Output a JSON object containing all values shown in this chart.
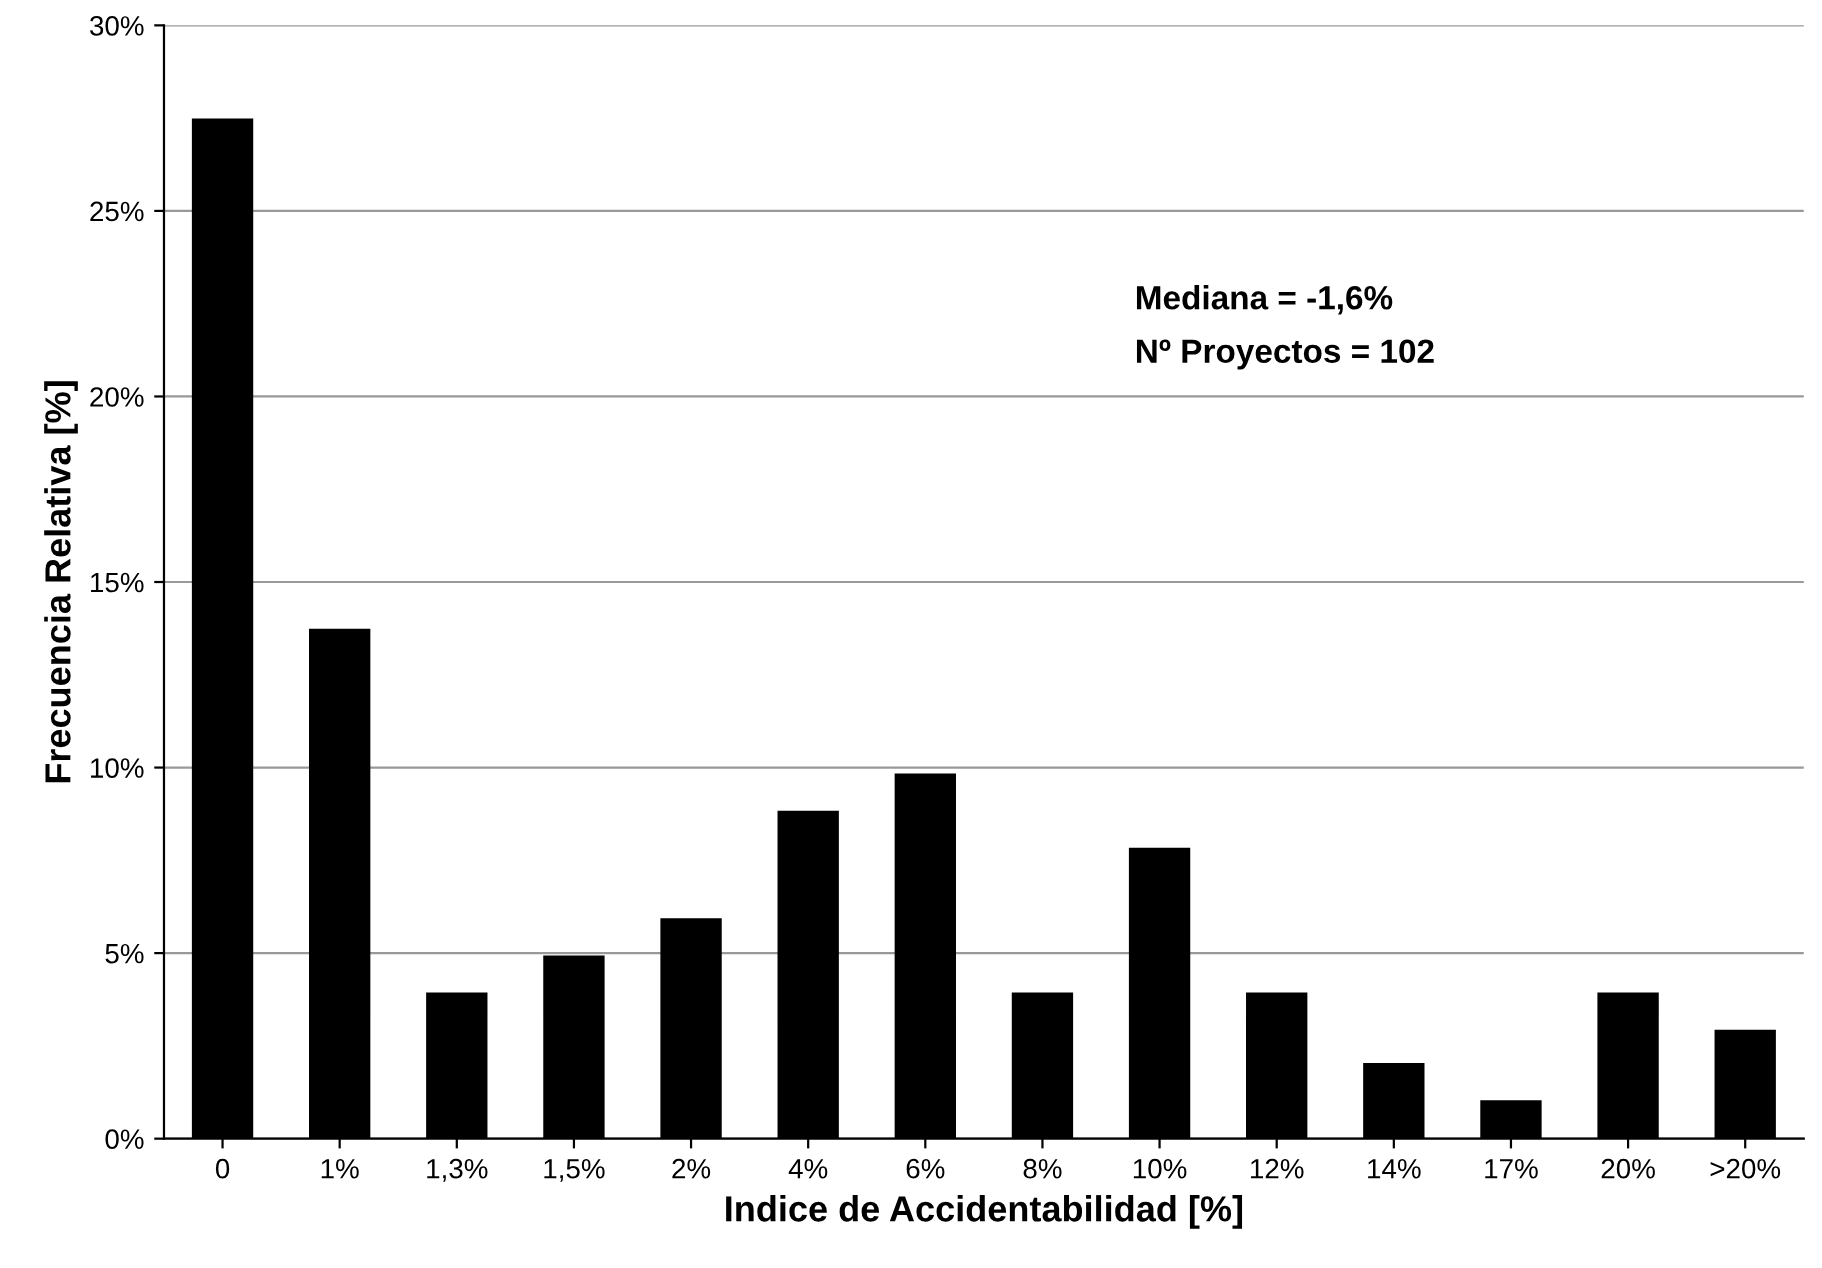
{
  "chart_data": {
    "type": "bar",
    "xlabel": "Indice de Accidentabilidad [%]",
    "ylabel": "Frecuencia Relativa [%]",
    "categories": [
      "0",
      "1%",
      "1,3%",
      "1,5%",
      "2%",
      "4%",
      "6%",
      "8%",
      "10%",
      "12%",
      "14%",
      "17%",
      "20%",
      ">20%"
    ],
    "values": [
      27.45,
      13.7,
      3.9,
      4.9,
      5.9,
      8.8,
      9.8,
      3.9,
      7.8,
      3.9,
      2.0,
      1.0,
      3.9,
      2.9
    ],
    "color": "#000000",
    "ylim": [
      0,
      30
    ],
    "yticks": [
      {
        "value": 0,
        "label": "0%"
      },
      {
        "value": 5,
        "label": "5%"
      },
      {
        "value": 10,
        "label": "10%"
      },
      {
        "value": 15,
        "label": "15%"
      },
      {
        "value": 20,
        "label": "20%"
      },
      {
        "value": 25,
        "label": "25%"
      },
      {
        "value": 30,
        "label": "30%"
      }
    ],
    "grid": "y",
    "annotations": [
      "Mediana = -1,6%",
      "Nº Proyectos = 102"
    ]
  }
}
